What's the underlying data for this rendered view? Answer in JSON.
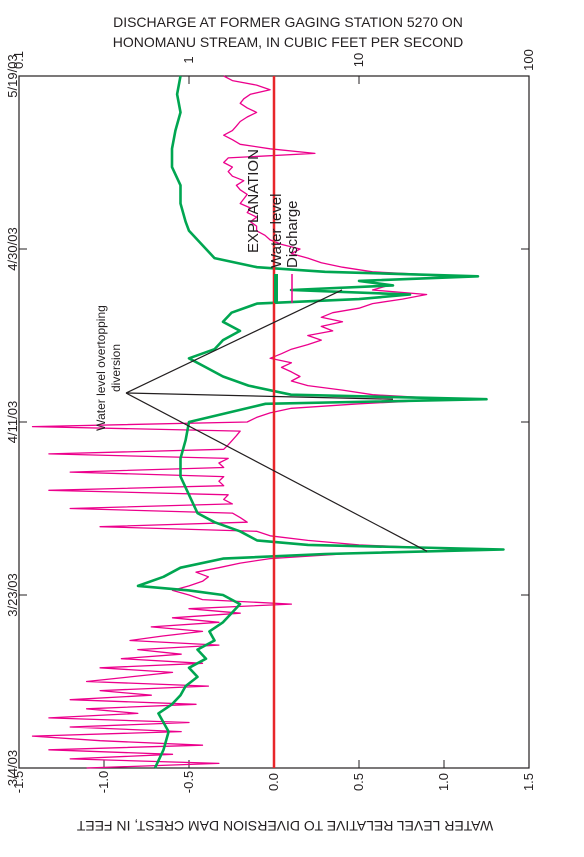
{
  "chart_data": {
    "type": "line",
    "orientation": "rotated-90",
    "title_top": [
      "DISCHARGE AT FORMER GAGING STATION 5270 ON",
      "HONOMANU STREAM, IN CUBIC FEET PER SECOND"
    ],
    "ylabel_left": "WATER LEVEL RELATIVE TO DIVERSION DAM CREST, IN FEET",
    "x_dates": [
      "3/4/03",
      "3/23/03",
      "4/11/03",
      "4/30/03",
      "5/19/03"
    ],
    "x_range_days": [
      0,
      76
    ],
    "water_level_axis": {
      "range": [
        -1.5,
        1.5
      ],
      "ticks": [
        "1.5",
        "1.0",
        "0.5",
        "0.0",
        "-0.5",
        "-1.0",
        "-1.5"
      ]
    },
    "discharge_axis": {
      "scale": "log",
      "range": [
        0.1,
        100
      ],
      "ticks": [
        "100",
        "10",
        "1",
        "0.1"
      ]
    },
    "reference_line": {
      "label": "diversion dam crest",
      "value": 0.0,
      "color": "#e8262a"
    },
    "legend": {
      "title": "EXPLANATION",
      "placement": "top-right"
    },
    "annotation": [
      "Water level overtopping",
      "diversion"
    ],
    "series": [
      {
        "name": "Water level",
        "axis": "water_level",
        "color": "#00a651",
        "points": [
          [
            0,
            -0.7
          ],
          [
            2,
            -0.65
          ],
          [
            4,
            -0.62
          ],
          [
            6,
            -0.68
          ],
          [
            7,
            -0.6
          ],
          [
            8,
            -0.55
          ],
          [
            9,
            -0.52
          ],
          [
            10,
            -0.45
          ],
          [
            11,
            -0.5
          ],
          [
            12,
            -0.4
          ],
          [
            13,
            -0.45
          ],
          [
            14,
            -0.35
          ],
          [
            15,
            -0.38
          ],
          [
            16,
            -0.3
          ],
          [
            17,
            -0.25
          ],
          [
            18,
            -0.2
          ],
          [
            19,
            -0.3
          ],
          [
            19.5,
            -0.5
          ],
          [
            20,
            -0.8
          ],
          [
            21,
            -0.65
          ],
          [
            22,
            -0.55
          ],
          [
            23,
            -0.3
          ],
          [
            23.5,
            0.3
          ],
          [
            24,
            1.35
          ],
          [
            24.5,
            0.2
          ],
          [
            25,
            -0.1
          ],
          [
            26,
            -0.2
          ],
          [
            27,
            -0.35
          ],
          [
            28,
            -0.45
          ],
          [
            30,
            -0.5
          ],
          [
            32,
            -0.55
          ],
          [
            34,
            -0.55
          ],
          [
            36,
            -0.52
          ],
          [
            38,
            -0.5
          ],
          [
            40,
            -0.05
          ],
          [
            40.5,
            1.25
          ],
          [
            41,
            0.1
          ],
          [
            42,
            -0.15
          ],
          [
            43,
            -0.3
          ],
          [
            44,
            -0.4
          ],
          [
            45,
            -0.5
          ],
          [
            46,
            -0.35
          ],
          [
            47,
            -0.3
          ],
          [
            48,
            -0.2
          ],
          [
            49,
            -0.3
          ],
          [
            50,
            -0.25
          ],
          [
            51,
            -0.1
          ],
          [
            51.5,
            0.5
          ],
          [
            52,
            0.8
          ],
          [
            52.5,
            0.1
          ],
          [
            53,
            0.7
          ],
          [
            53.5,
            0.5
          ],
          [
            54,
            1.2
          ],
          [
            54.5,
            0.3
          ],
          [
            55,
            -0.1
          ],
          [
            56,
            -0.35
          ],
          [
            57,
            -0.4
          ],
          [
            58,
            -0.45
          ],
          [
            59,
            -0.5
          ],
          [
            60,
            -0.52
          ],
          [
            62,
            -0.55
          ],
          [
            64,
            -0.55
          ],
          [
            66,
            -0.6
          ],
          [
            68,
            -0.6
          ],
          [
            70,
            -0.58
          ],
          [
            72,
            -0.55
          ],
          [
            74,
            -0.57
          ],
          [
            76,
            -0.55
          ]
        ]
      },
      {
        "name": "Discharge",
        "axis": "discharge",
        "color": "#ec008c",
        "points": [
          [
            0,
            0.25
          ],
          [
            0.5,
            1.5
          ],
          [
            1,
            0.2
          ],
          [
            1.5,
            0.8
          ],
          [
            2,
            0.15
          ],
          [
            2.5,
            1.2
          ],
          [
            3,
            0.3
          ],
          [
            3.5,
            0.12
          ],
          [
            4,
            0.9
          ],
          [
            4.5,
            0.2
          ],
          [
            5,
            1.0
          ],
          [
            5.5,
            0.15
          ],
          [
            6,
            0.5
          ],
          [
            6.5,
            0.25
          ],
          [
            7,
            1.1
          ],
          [
            7.5,
            0.2
          ],
          [
            8,
            0.6
          ],
          [
            8.5,
            0.3
          ],
          [
            9,
            1.3
          ],
          [
            9.5,
            0.25
          ],
          [
            10,
            0.45
          ],
          [
            10.5,
            0.8
          ],
          [
            11,
            0.3
          ],
          [
            11.5,
            1.2
          ],
          [
            12,
            0.4
          ],
          [
            12.5,
            0.9
          ],
          [
            13,
            0.5
          ],
          [
            13.5,
            1.5
          ],
          [
            14,
            0.45
          ],
          [
            14.5,
            0.7
          ],
          [
            15,
            1.2
          ],
          [
            15.5,
            0.6
          ],
          [
            16,
            1.5
          ],
          [
            16.5,
            0.8
          ],
          [
            17,
            2.0
          ],
          [
            17.5,
            1.0
          ],
          [
            18,
            4.0
          ],
          [
            18.5,
            1.2
          ],
          [
            19,
            1.0
          ],
          [
            19.5,
            0.8
          ],
          [
            20,
            1.0
          ],
          [
            20.5,
            1.2
          ],
          [
            21,
            1.3
          ],
          [
            21.5,
            1.1
          ],
          [
            22,
            1.5
          ],
          [
            22.5,
            2.0
          ],
          [
            23,
            3.0
          ],
          [
            23.5,
            8.0
          ],
          [
            24,
            45.0
          ],
          [
            24.5,
            10.0
          ],
          [
            25,
            5.0
          ],
          [
            25.5,
            3.0
          ],
          [
            26,
            2.5
          ],
          [
            26.5,
            0.3
          ],
          [
            27,
            2.2
          ],
          [
            27.5,
            2.0
          ],
          [
            28,
            1.8
          ],
          [
            28.5,
            0.2
          ],
          [
            29,
            1.8
          ],
          [
            29.5,
            1.6
          ],
          [
            30,
            1.7
          ],
          [
            30.5,
            0.15
          ],
          [
            31,
            1.6
          ],
          [
            31.5,
            1.5
          ],
          [
            32,
            1.6
          ],
          [
            32.5,
            0.2
          ],
          [
            33,
            1.6
          ],
          [
            33.5,
            1.5
          ],
          [
            34,
            1.7
          ],
          [
            34.5,
            0.15
          ],
          [
            35,
            1.6
          ],
          [
            35.5,
            1.7
          ],
          [
            36,
            1.8
          ],
          [
            36.5,
            1.9
          ],
          [
            37,
            2.0
          ],
          [
            37.5,
            0.12
          ],
          [
            38,
            2.2
          ],
          [
            38.5,
            2.5
          ],
          [
            39,
            3.0
          ],
          [
            39.5,
            4.0
          ],
          [
            40,
            10.0
          ],
          [
            40.5,
            35.0
          ],
          [
            41,
            12.0
          ],
          [
            41.5,
            8.0
          ],
          [
            42,
            5.0
          ],
          [
            42.5,
            4.0
          ],
          [
            43,
            4.5
          ],
          [
            43.5,
            4.0
          ],
          [
            44,
            3.5
          ],
          [
            44.5,
            4.0
          ],
          [
            45,
            3.0
          ],
          [
            45.5,
            3.5
          ],
          [
            46,
            4.0
          ],
          [
            46.5,
            5.0
          ],
          [
            47,
            6.0
          ],
          [
            47.5,
            5.0
          ],
          [
            48,
            7.0
          ],
          [
            48.5,
            6.0
          ],
          [
            49,
            8.0
          ],
          [
            49.5,
            6.0
          ],
          [
            50,
            7.0
          ],
          [
            50.5,
            10.0
          ],
          [
            51,
            12.0
          ],
          [
            51.5,
            18.0
          ],
          [
            52,
            25.0
          ],
          [
            52.5,
            12.0
          ],
          [
            53,
            15.0
          ],
          [
            53.5,
            10.0
          ],
          [
            54,
            40.0
          ],
          [
            54.5,
            12.0
          ],
          [
            55,
            8.0
          ],
          [
            55.5,
            6.0
          ],
          [
            56,
            5.0
          ],
          [
            56.5,
            4.0
          ],
          [
            57,
            4.5
          ],
          [
            57.5,
            3.5
          ],
          [
            58,
            3.0
          ],
          [
            58.5,
            2.8
          ],
          [
            59,
            2.5
          ],
          [
            59.5,
            2.5
          ],
          [
            60,
            2.3
          ],
          [
            60.5,
            2.5
          ],
          [
            61,
            2.2
          ],
          [
            61.5,
            2.3
          ],
          [
            62,
            2.0
          ],
          [
            62.5,
            2.1
          ],
          [
            63,
            2.2
          ],
          [
            63.5,
            2.0
          ],
          [
            64,
            1.9
          ],
          [
            64.5,
            2.1
          ],
          [
            65,
            1.8
          ],
          [
            65.5,
            1.7
          ],
          [
            66,
            1.8
          ],
          [
            66.5,
            1.6
          ],
          [
            67,
            1.7
          ],
          [
            67.5,
            5.5
          ],
          [
            68,
            3.0
          ],
          [
            68.5,
            2.0
          ],
          [
            69,
            1.8
          ],
          [
            69.5,
            1.6
          ],
          [
            70,
            1.8
          ],
          [
            70.5,
            1.9
          ],
          [
            71,
            2.0
          ],
          [
            71.5,
            2.2
          ],
          [
            72,
            2.5
          ],
          [
            72.5,
            2.2
          ],
          [
            73,
            2.0
          ],
          [
            73.5,
            2.1
          ],
          [
            74,
            2.3
          ],
          [
            74.5,
            3.0
          ],
          [
            75,
            2.5
          ],
          [
            75.5,
            1.8
          ],
          [
            76,
            1.6
          ]
        ]
      }
    ]
  },
  "legend_items": [
    {
      "label": "Water level",
      "color": "#00a651"
    },
    {
      "label": "Discharge",
      "color": "#ec008c"
    }
  ]
}
